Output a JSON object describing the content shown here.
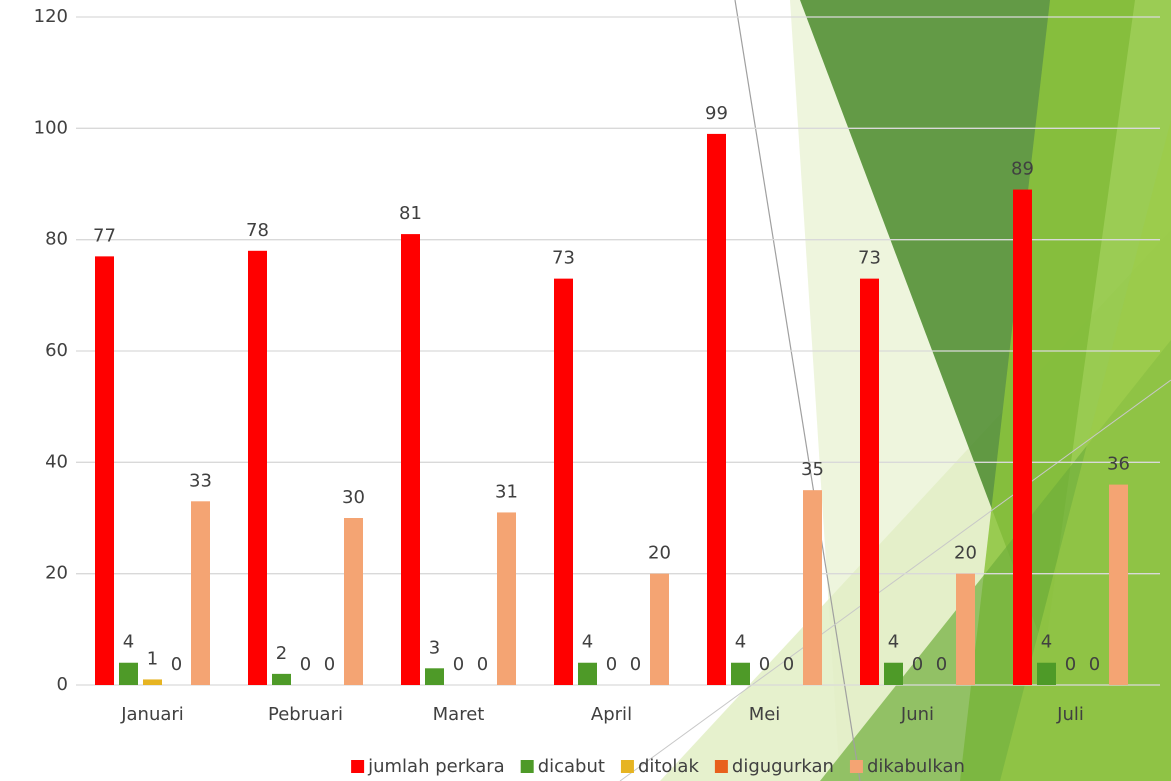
{
  "chart_data": {
    "type": "bar",
    "categories": [
      "Januari",
      "Pebruari",
      "Maret",
      "April",
      "Mei",
      "Juni",
      "Juli"
    ],
    "series": [
      {
        "name": "jumlah perkara",
        "color": "#ff0000",
        "values": [
          77,
          78,
          81,
          73,
          99,
          73,
          89
        ]
      },
      {
        "name": "dicabut",
        "color": "#4e9a28",
        "values": [
          4,
          2,
          3,
          4,
          4,
          4,
          4
        ]
      },
      {
        "name": "ditolak",
        "color": "#e6b422",
        "values": [
          1,
          0,
          0,
          0,
          0,
          0,
          0
        ]
      },
      {
        "name": "digugurkan",
        "color": "#e8601c",
        "values": [
          0,
          0,
          0,
          0,
          0,
          0,
          0
        ]
      },
      {
        "name": "dikabulkan",
        "color": "#f4a473",
        "values": [
          33,
          30,
          31,
          20,
          35,
          20,
          36
        ]
      }
    ],
    "ylim": [
      0,
      120
    ],
    "yticks": [
      0,
      20,
      40,
      60,
      80,
      100,
      120
    ],
    "grid": true,
    "legend": "bottom"
  }
}
